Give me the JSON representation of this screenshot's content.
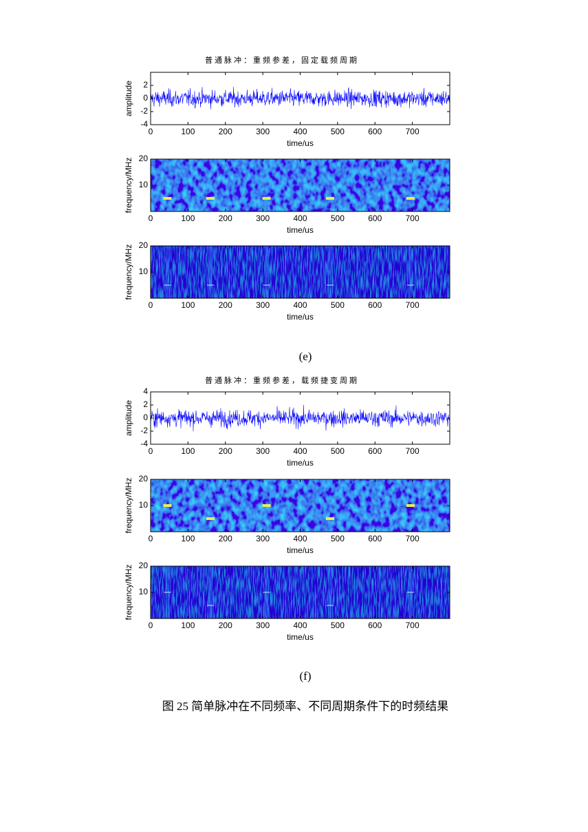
{
  "figure": {
    "panels": [
      {
        "label": "(e)",
        "title": "普通脉冲：重频参差，固定载频周期",
        "plots": [
          {
            "ylabel": "amplitude",
            "ylim": [
              -4,
              4
            ],
            "yticks": [
              -4,
              -2,
              0,
              2
            ],
            "xlim": [
              0,
              800
            ],
            "xticks": [
              0,
              100,
              200,
              300,
              400,
              500,
              600,
              700
            ],
            "xlabel": "time/us"
          },
          {
            "ylabel": "frequency/MHz",
            "ylim": [
              0,
              20
            ],
            "yticks": [
              10,
              20
            ],
            "xlim": [
              0,
              800
            ],
            "xticks": [
              0,
              100,
              200,
              300,
              400,
              500,
              600,
              700
            ],
            "xlabel": "time/us"
          },
          {
            "ylabel": "frequency/MHz",
            "ylim": [
              0,
              20
            ],
            "yticks": [
              10,
              20
            ],
            "xlim": [
              0,
              800
            ],
            "xticks": [
              0,
              100,
              200,
              300,
              400,
              500,
              600,
              700
            ],
            "xlabel": "time/us"
          }
        ]
      },
      {
        "label": "(f)",
        "title": "普通脉冲：重频参差，载频捷变周期",
        "plots": [
          {
            "ylabel": "amplitude",
            "ylim": [
              -4,
              4
            ],
            "yticks": [
              -4,
              -2,
              0,
              2,
              4
            ],
            "xlim": [
              0,
              800
            ],
            "xticks": [
              0,
              100,
              200,
              300,
              400,
              500,
              600,
              700
            ],
            "xlabel": "time/us"
          },
          {
            "ylabel": "frequency/MHz",
            "ylim": [
              0,
              20
            ],
            "yticks": [
              10,
              20
            ],
            "xlim": [
              0,
              800
            ],
            "xticks": [
              0,
              100,
              200,
              300,
              400,
              500,
              600,
              700
            ],
            "xlabel": "time/us"
          },
          {
            "ylabel": "frequency/MHz",
            "ylim": [
              0,
              20
            ],
            "yticks": [
              10,
              20
            ],
            "xlim": [
              0,
              800
            ],
            "xticks": [
              0,
              100,
              200,
              300,
              400,
              500,
              600,
              700
            ],
            "xlabel": "time/us"
          }
        ]
      }
    ],
    "caption": "图 25 简单脉冲在不同频率、不同周期条件下的时频结果"
  }
}
